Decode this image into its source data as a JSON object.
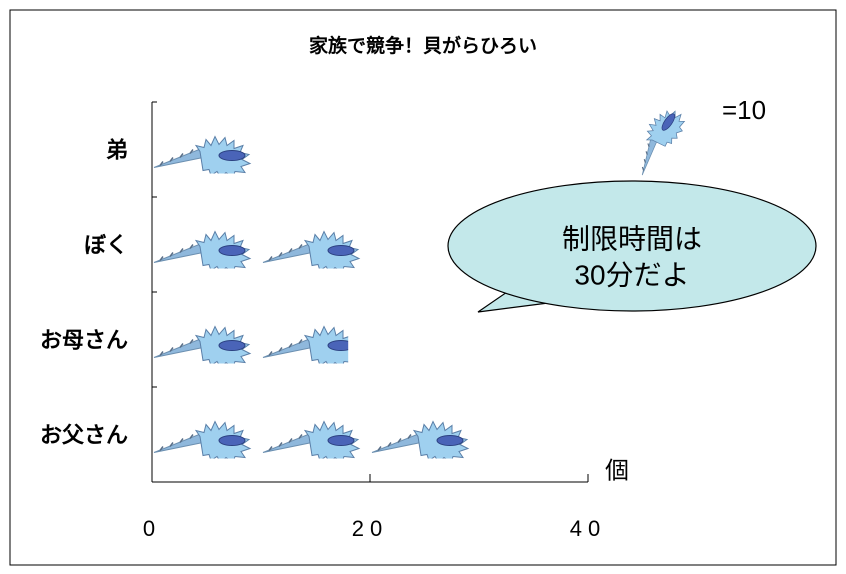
{
  "chart_data": {
    "type": "pictograph",
    "title": "家族で競争！貝がらひろい",
    "categories": [
      "弟",
      "ぼく",
      "お母さん",
      "お父さん"
    ],
    "values": [
      10,
      20,
      18,
      30
    ],
    "xlim": [
      0,
      40
    ],
    "xticks": [
      0,
      20,
      40
    ],
    "x_label": "個",
    "unit": {
      "value": 10,
      "label": "=10"
    },
    "annotation": [
      "制限時間は",
      "30分だよ"
    ],
    "color": "#9fd0ef",
    "callout_color": "#c3e8ea"
  }
}
